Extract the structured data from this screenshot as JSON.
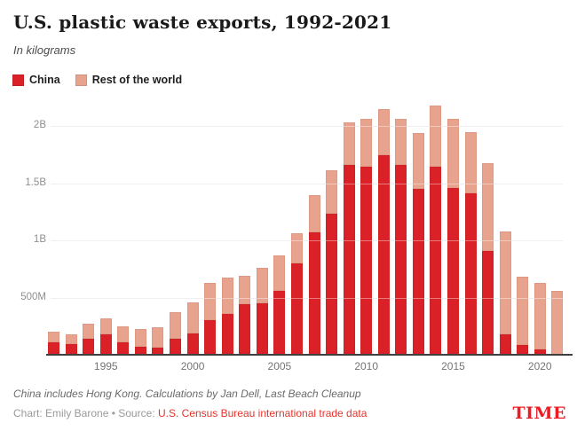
{
  "header": {
    "title": "U.S. plastic waste exports, 1992-2021",
    "subtitle": "In kilograms"
  },
  "footer": {
    "note": "China includes Hong Kong. Calculations by Jan Dell, Last Beach Cleanup",
    "credit_prefix": "Chart: Emily Barone • Source: ",
    "source_link": "U.S. Census Bureau international trade data",
    "brand": "TIME"
  },
  "colors": {
    "china": "#da2127",
    "rest_of_world": "#e8a38e",
    "source_link": "#e5342c",
    "brand": "#ed1c24",
    "gridline": "#e4e4e4",
    "axis_line": "#3f3f3f"
  },
  "chart_data": {
    "type": "bar",
    "stacked": true,
    "title": "U.S. plastic waste exports, 1992-2021",
    "subtitle": "In kilograms",
    "unit": "kilograms",
    "values_unit": "millions of kilograms",
    "grid": "horizontal",
    "legend_position": "top-left",
    "categories": [
      1992,
      1993,
      1994,
      1995,
      1996,
      1997,
      1998,
      1999,
      2000,
      2001,
      2002,
      2003,
      2004,
      2005,
      2006,
      2007,
      2008,
      2009,
      2010,
      2011,
      2012,
      2013,
      2014,
      2015,
      2016,
      2017,
      2018,
      2019,
      2020,
      2021
    ],
    "series": [
      {
        "name": "China",
        "color": "#da2127",
        "values": [
          110,
          90,
          140,
          180,
          105,
          70,
          65,
          140,
          185,
          300,
          355,
          440,
          450,
          555,
          800,
          1070,
          1230,
          1660,
          1640,
          1745,
          1660,
          1450,
          1640,
          1460,
          1410,
          910,
          180,
          85,
          50,
          0
        ]
      },
      {
        "name": "Rest of the world",
        "color": "#e8a38e",
        "values": [
          95,
          85,
          135,
          140,
          145,
          155,
          175,
          230,
          275,
          325,
          320,
          250,
          310,
          310,
          265,
          325,
          385,
          370,
          420,
          405,
          400,
          490,
          535,
          600,
          535,
          765,
          900,
          595,
          580,
          560
        ]
      }
    ],
    "y_axis": {
      "range_millions": [
        0,
        2300
      ],
      "ticks": [
        {
          "value_millions": 500,
          "label": "500M"
        },
        {
          "value_millions": 1000,
          "label": "1B"
        },
        {
          "value_millions": 1500,
          "label": "1.5B"
        },
        {
          "value_millions": 2000,
          "label": "2B"
        }
      ]
    },
    "x_axis": {
      "ticks": [
        1995,
        2000,
        2005,
        2010,
        2015,
        2020
      ]
    }
  }
}
